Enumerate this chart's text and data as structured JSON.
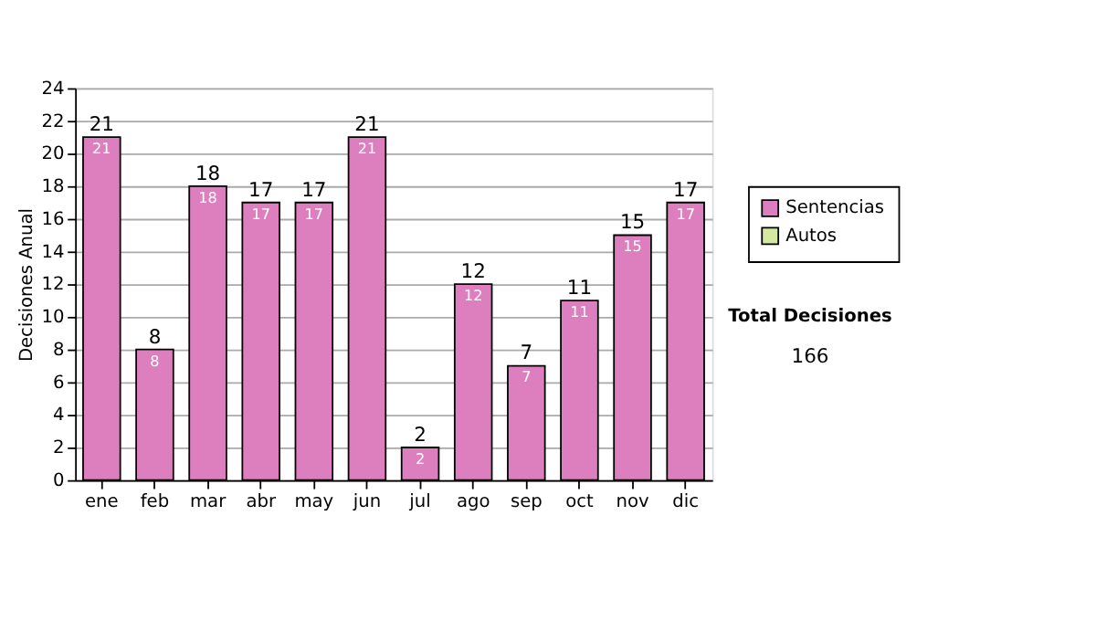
{
  "chart_data": {
    "type": "bar",
    "ylabel": "Decisiones Anual",
    "categories": [
      "ene",
      "feb",
      "mar",
      "abr",
      "may",
      "jun",
      "jul",
      "ago",
      "sep",
      "oct",
      "nov",
      "dic"
    ],
    "series": [
      {
        "name": "Sentencias",
        "color": "#dd7fbf",
        "values": [
          21,
          8,
          18,
          17,
          17,
          21,
          2,
          12,
          7,
          11,
          15,
          17
        ],
        "value_labels": [
          "21",
          "8",
          "18",
          "17",
          "17",
          "21",
          "2",
          "12",
          "7",
          "11",
          "15",
          "17"
        ]
      },
      {
        "name": "Autos",
        "color": "#d4e8a0",
        "values": [
          0,
          0,
          0,
          0,
          0,
          0,
          0,
          0,
          0,
          0,
          0,
          0
        ]
      }
    ],
    "totals": [
      "21",
      "8",
      "18",
      "17",
      "17",
      "21",
      "2",
      "12",
      "7",
      "11",
      "15",
      "17"
    ],
    "ylim": [
      0,
      24
    ],
    "yticks": [
      0,
      2,
      4,
      6,
      8,
      10,
      12,
      14,
      16,
      18,
      20,
      22,
      24
    ],
    "grid": "y",
    "legend": "right",
    "annotations": [
      "Total Decisiones",
      "166"
    ]
  }
}
